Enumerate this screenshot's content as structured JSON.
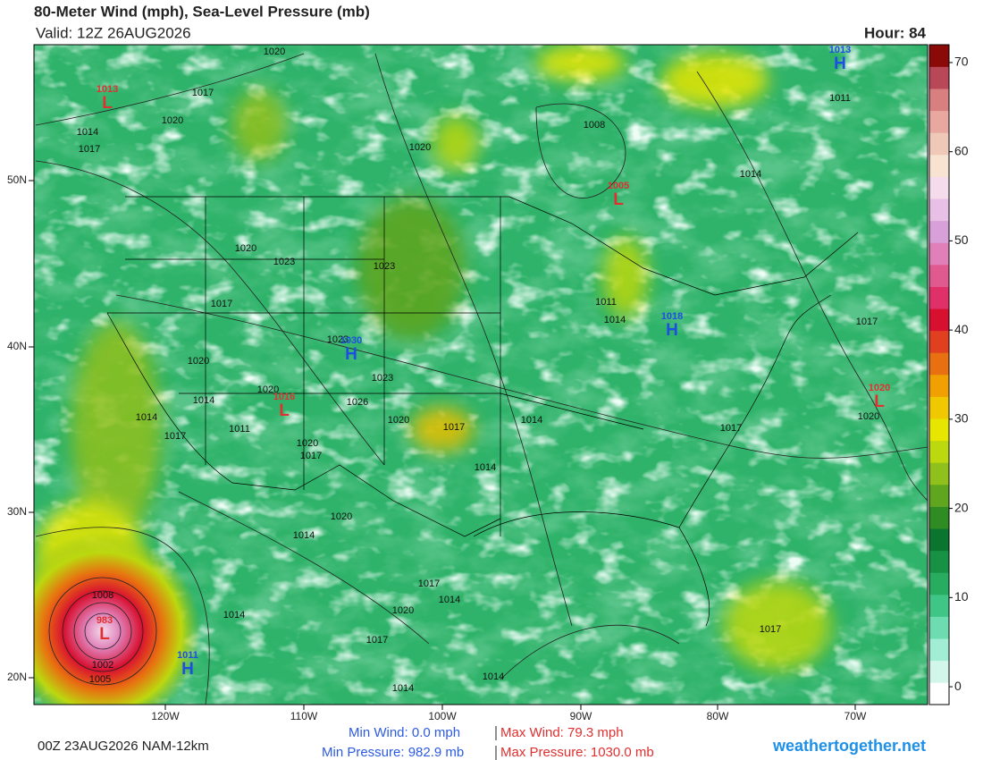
{
  "header": {
    "title": "80-Meter Wind (mph), Sea-Level Pressure (mb)",
    "valid": "Valid: 12Z 26AUG2026",
    "hour": "Hour: 84"
  },
  "colorbar": {
    "lim": [
      -2,
      72
    ],
    "ticks": [
      0,
      10,
      20,
      30,
      40,
      50,
      60,
      70
    ],
    "colors": [
      "#ffffff",
      "#d2f7ea",
      "#a2eed5",
      "#6ddcb0",
      "#3fc585",
      "#28ad60",
      "#179245",
      "#0b7530",
      "#2f8c22",
      "#5fa51e",
      "#8fc01c",
      "#bcd80f",
      "#e6e600",
      "#f0c800",
      "#f0a000",
      "#e87010",
      "#e04020",
      "#d81030",
      "#e0306a",
      "#e05a90",
      "#e080b8",
      "#d8a0d8",
      "#e8c0e6",
      "#f4dcec",
      "#f8e2d2",
      "#f0c8b8",
      "#e8a8a0",
      "#d88080",
      "#b84858",
      "#8a0a0a"
    ]
  },
  "map": {
    "lat_labels": [
      "50N",
      "40N",
      "30N",
      "20N"
    ],
    "lon_labels": [
      "120W",
      "110W",
      "100W",
      "90W",
      "80W",
      "70W"
    ],
    "isobars": [
      "1020",
      "1017",
      "1020",
      "1014",
      "1017",
      "1020",
      "1008",
      "1014",
      "1011",
      "1020",
      "1023",
      "1023",
      "1017",
      "1011",
      "1014",
      "1017",
      "1023",
      "1020",
      "1023",
      "1020",
      "1014",
      "1026",
      "1014",
      "1011",
      "1020",
      "1017",
      "1014",
      "1017",
      "1020",
      "1017",
      "1020",
      "1017",
      "1014",
      "1020",
      "1014",
      "1008",
      "1014",
      "1017",
      "1014",
      "1020",
      "1017",
      "1002",
      "1005",
      "1014",
      "1014",
      "1017"
    ],
    "centers": [
      {
        "letter": "L",
        "value": "1013"
      },
      {
        "letter": "L",
        "value": "1005"
      },
      {
        "letter": "H",
        "value": "1013"
      },
      {
        "letter": "H",
        "value": "1018"
      },
      {
        "letter": "H",
        "value": "1030"
      },
      {
        "letter": "L",
        "value": "1016"
      },
      {
        "letter": "L",
        "value": "1020"
      },
      {
        "letter": "L",
        "value": "983"
      },
      {
        "letter": "H",
        "value": "1011"
      }
    ]
  },
  "footer": {
    "run": "00Z 23AUG2026 NAM-12km",
    "min_wind": "Min Wind:   0.0 mph",
    "max_wind": "Max Wind: 79.3 mph",
    "min_pressure": "Min Pressure: 982.9 mb",
    "max_pressure": "Max Pressure: 1030.0 mb",
    "site": "weathertogether.net"
  }
}
